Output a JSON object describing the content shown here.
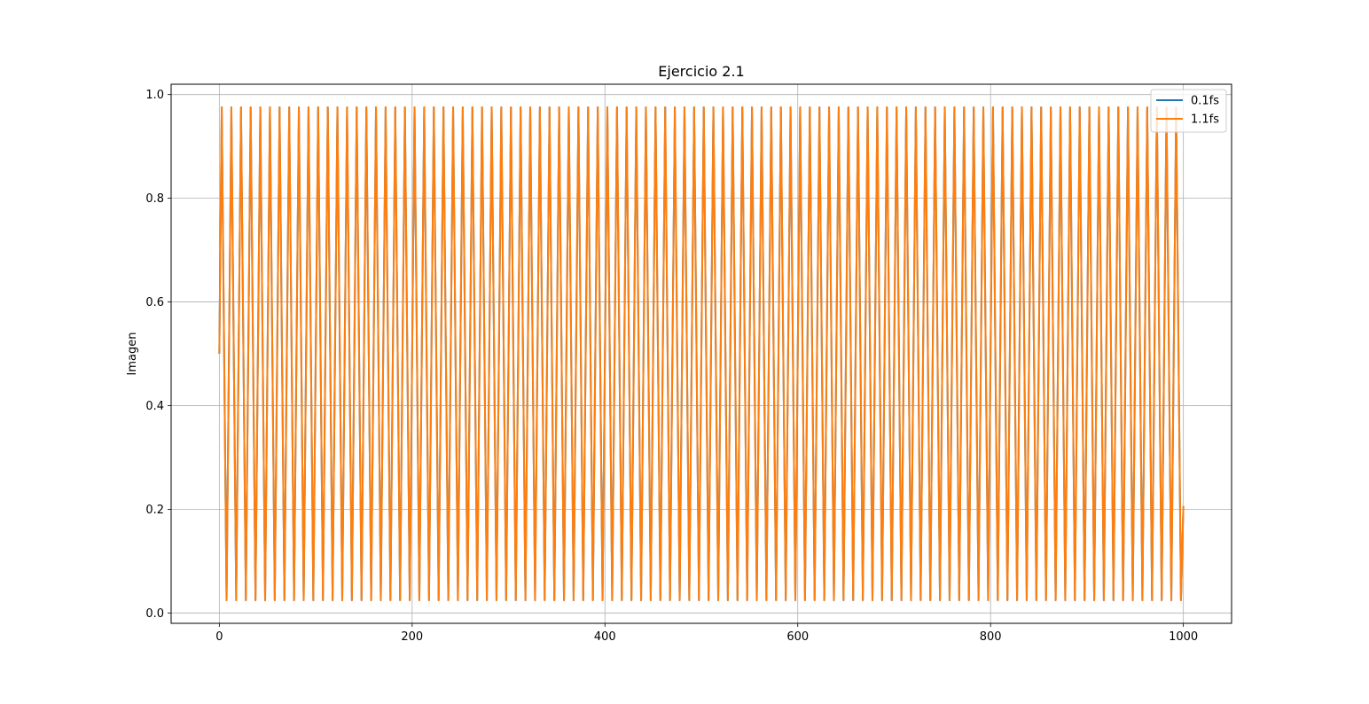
{
  "chart_data": {
    "type": "line",
    "title": "Ejercicio 2.1",
    "xlabel": "",
    "ylabel": "Imagen",
    "xlim": [
      -50,
      1050
    ],
    "ylim": [
      -0.02,
      1.02
    ],
    "xticks": [
      0,
      200,
      400,
      600,
      800,
      1000
    ],
    "xtick_labels": [
      "0",
      "200",
      "400",
      "600",
      "800",
      "1000"
    ],
    "yticks": [
      0.0,
      0.2,
      0.4,
      0.6,
      0.8,
      1.0
    ],
    "ytick_labels": [
      "0.0",
      "0.2",
      "0.4",
      "0.6",
      "0.8",
      "1.0"
    ],
    "grid": true,
    "legend_position": "top-right",
    "signal": {
      "x_start": 0,
      "x_end": 1000,
      "period": 10,
      "first_peak_x": 2.5,
      "min": 0.0245,
      "max": 0.9755,
      "start_value": 0.5,
      "end_value": 0.206
    },
    "series": [
      {
        "name": "0.1fs",
        "color": "#1f77b4"
      },
      {
        "name": "1.1fs",
        "color": "#ff7f0e"
      }
    ]
  }
}
